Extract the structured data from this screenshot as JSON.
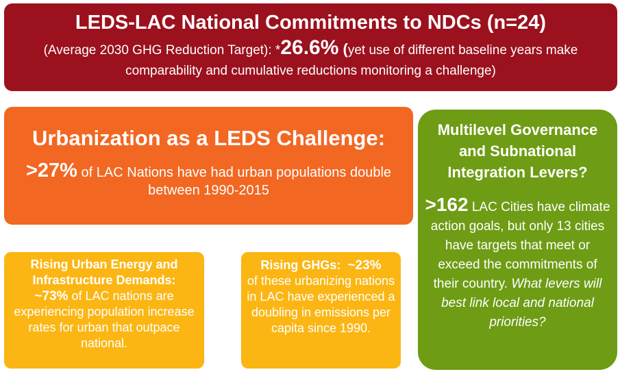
{
  "banner": {
    "title": "LEDS-LAC National Commitments to NDCs (n=24)",
    "sub_prefix": "(Average 2030 GHG Reduction Target): *",
    "target": "26.6%",
    "paren_open": " (",
    "sub_suffix": "yet use of different baseline years make comparability and cumulative reductions monitoring a challenge)"
  },
  "urban": {
    "title": "Urbanization as a LEDS Challenge:",
    "stat": ">27%",
    "text": " of LAC Nations have had urban populations double between 1990-2015"
  },
  "govern": {
    "title": "Multilevel Governance and Subnational Integration Levers?",
    "stat": ">162",
    "text": " LAC Cities have climate action goals, but only 13 cities have targets that meet or exceed the commitments of their country. ",
    "question": "What levers will best link local and national priorities?"
  },
  "energy": {
    "title": "Rising Urban Energy  and Infrastructure Demands:",
    "stat": "~73%",
    "text": " of LAC nations are experiencing population increase rates for urban that outpace national."
  },
  "ghg": {
    "title": "Rising GHGs:",
    "stat": "~23%",
    "text": "of these urbanizing nations in LAC have experienced a doubling in emissions per capita since 1990."
  }
}
